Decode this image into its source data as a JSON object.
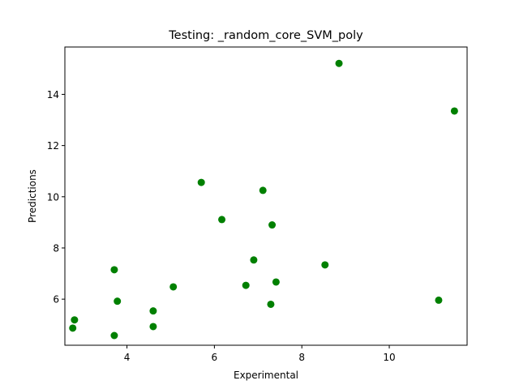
{
  "chart_data": {
    "type": "scatter",
    "title": "Testing: _random_core_SVM_poly",
    "xlabel": "Experimental",
    "ylabel": "Predictions",
    "xlim": [
      2.58,
      11.78
    ],
    "ylim": [
      4.2,
      15.85
    ],
    "xticks": [
      4,
      6,
      8,
      10
    ],
    "yticks": [
      6,
      8,
      10,
      12,
      14
    ],
    "grid": false,
    "marker_color": "#008000",
    "points": [
      {
        "x": 2.76,
        "y": 4.87
      },
      {
        "x": 2.8,
        "y": 5.19
      },
      {
        "x": 3.71,
        "y": 4.58
      },
      {
        "x": 3.71,
        "y": 7.15
      },
      {
        "x": 3.78,
        "y": 5.92
      },
      {
        "x": 4.6,
        "y": 5.54
      },
      {
        "x": 4.6,
        "y": 4.93
      },
      {
        "x": 5.06,
        "y": 6.48
      },
      {
        "x": 5.7,
        "y": 10.56
      },
      {
        "x": 6.17,
        "y": 9.11
      },
      {
        "x": 6.72,
        "y": 6.54
      },
      {
        "x": 6.9,
        "y": 7.53
      },
      {
        "x": 7.11,
        "y": 10.25
      },
      {
        "x": 7.29,
        "y": 5.8
      },
      {
        "x": 7.32,
        "y": 8.9
      },
      {
        "x": 7.41,
        "y": 6.67
      },
      {
        "x": 8.53,
        "y": 7.34
      },
      {
        "x": 8.85,
        "y": 15.21
      },
      {
        "x": 11.13,
        "y": 5.96
      },
      {
        "x": 11.49,
        "y": 13.35
      }
    ]
  }
}
